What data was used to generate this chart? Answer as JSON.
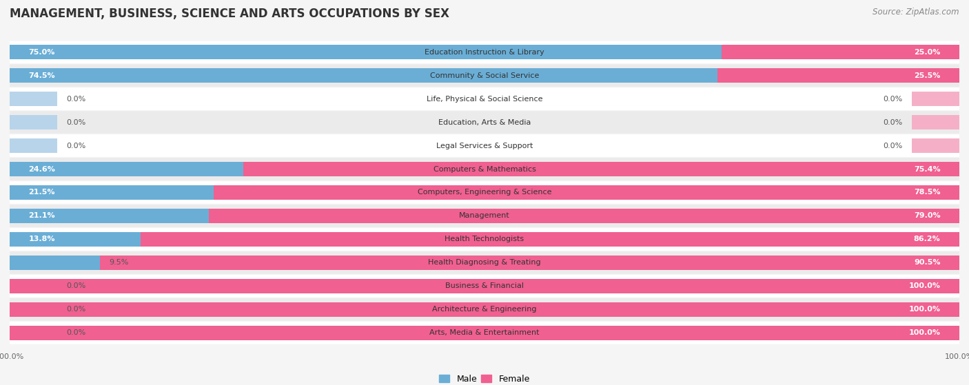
{
  "title": "MANAGEMENT, BUSINESS, SCIENCE AND ARTS OCCUPATIONS BY SEX",
  "source": "Source: ZipAtlas.com",
  "categories": [
    "Education Instruction & Library",
    "Community & Social Service",
    "Life, Physical & Social Science",
    "Education, Arts & Media",
    "Legal Services & Support",
    "Computers & Mathematics",
    "Computers, Engineering & Science",
    "Management",
    "Health Technologists",
    "Health Diagnosing & Treating",
    "Business & Financial",
    "Architecture & Engineering",
    "Arts, Media & Entertainment"
  ],
  "male_pct": [
    75.0,
    74.5,
    0.0,
    0.0,
    0.0,
    24.6,
    21.5,
    21.1,
    13.8,
    9.5,
    0.0,
    0.0,
    0.0
  ],
  "female_pct": [
    25.0,
    25.5,
    0.0,
    0.0,
    0.0,
    75.4,
    78.5,
    79.0,
    86.2,
    90.5,
    100.0,
    100.0,
    100.0
  ],
  "male_color": "#6aaed6",
  "female_color": "#f06090",
  "male_stub_color": "#b8d4ea",
  "female_stub_color": "#f5b0c8",
  "bg_dark": "#e8e8e8",
  "bg_light": "#f2f2f2",
  "row_bg": "#f5f5f5",
  "title_fontsize": 12,
  "source_fontsize": 8.5,
  "label_fontsize": 8,
  "pct_fontsize": 8,
  "legend_fontsize": 9,
  "bar_height": 0.62,
  "stub_size": 5.0,
  "x_min": 0,
  "x_max": 100
}
